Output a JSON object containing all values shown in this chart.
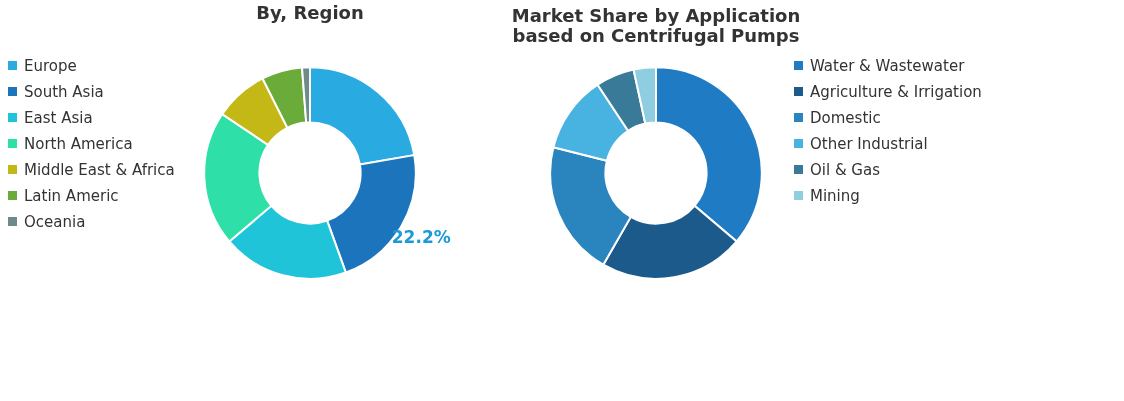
{
  "chart_data": [
    {
      "type": "donut",
      "title": "By, Region",
      "categories": [
        "Europe",
        "South Asia",
        "East Asia",
        "North America",
        "Middle East & Africa",
        "Latin Americ",
        "Oceania"
      ],
      "values": [
        22.3,
        22.2,
        19.3,
        20.6,
        8.2,
        6.2,
        1.2
      ],
      "colors": [
        "#29abe2",
        "#1c75bc",
        "#1fc4d9",
        "#2ee0a8",
        "#c4b817",
        "#6aab3a",
        "#6e8a8a"
      ],
      "value_labels": [
        null,
        "22.2%",
        null,
        null,
        null,
        null,
        null
      ],
      "legend": "left"
    },
    {
      "type": "donut",
      "title": "Market Share by Application based on Centrifugal Pumps",
      "categories": [
        "Water & Wastewater",
        "Agriculture & Irrigation",
        "Domestic",
        "Other Industrial",
        "Oil & Gas",
        "Mining"
      ],
      "values": [
        36.2,
        22.1,
        20.6,
        11.8,
        5.9,
        3.4
      ],
      "colors": [
        "#1f7bc4",
        "#1d5a8c",
        "#2a85bf",
        "#48b2e0",
        "#3a7a99",
        "#8fcde0"
      ],
      "legend": "right"
    }
  ]
}
